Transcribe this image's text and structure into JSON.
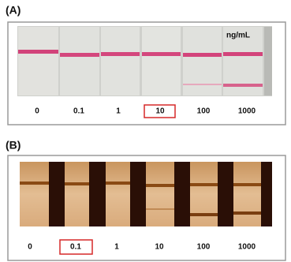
{
  "panel_a": {
    "label": "(A)",
    "unit": "ng/mL",
    "concentrations": [
      "0",
      "0.1",
      "1",
      "10",
      "100",
      "1000"
    ]
  },
  "panel_b": {
    "label": "(B)",
    "concentrations": [
      "0",
      "0.1",
      "1",
      "10",
      "100",
      "1000"
    ]
  }
}
